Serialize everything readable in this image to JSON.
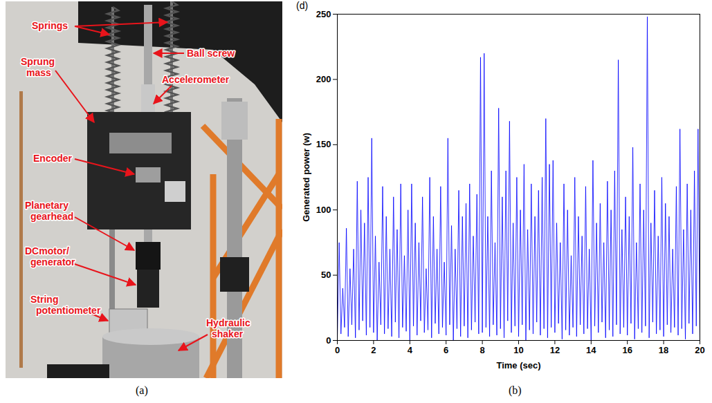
{
  "captions": [
    "(a)",
    "(b)"
  ],
  "panel_a": {
    "labels": [
      {
        "lines": [
          "Springs"
        ]
      },
      {
        "lines": [
          "Ball screw"
        ]
      },
      {
        "lines": [
          "Sprung",
          "mass"
        ]
      },
      {
        "lines": [
          "Accelerometer"
        ]
      },
      {
        "lines": [
          "Encoder"
        ]
      },
      {
        "lines": [
          "Planetary",
          "gearhead"
        ]
      },
      {
        "lines": [
          "DCmotor/",
          "generator"
        ]
      },
      {
        "lines": [
          "String",
          "potentiometer"
        ]
      },
      {
        "lines": [
          "Hydraulic",
          "shaker"
        ]
      }
    ]
  },
  "chart_data": {
    "type": "line",
    "annotations": [
      "(d)"
    ],
    "x_label": "Time (sec)",
    "y_label": "Generated power (w)",
    "color": "#0000ff",
    "xlim": [
      0,
      20
    ],
    "xticks": [
      0,
      2,
      4,
      6,
      8,
      10,
      12,
      14,
      16,
      18,
      20
    ],
    "ylim": [
      0,
      250
    ],
    "yticks": [
      0,
      50,
      100,
      150,
      200,
      250
    ],
    "x": [
      0,
      0.1,
      0.2,
      0.3,
      0.4,
      0.5,
      0.6,
      0.7,
      0.8,
      0.9,
      1,
      1.1,
      1.2,
      1.3,
      1.4,
      1.5,
      1.6,
      1.7,
      1.8,
      1.9,
      2,
      2.1,
      2.2,
      2.3,
      2.4,
      2.5,
      2.6,
      2.7,
      2.8,
      2.9,
      3,
      3.1,
      3.2,
      3.3,
      3.4,
      3.5,
      3.6,
      3.7,
      3.8,
      3.9,
      4,
      4.1,
      4.2,
      4.3,
      4.4,
      4.5,
      4.6,
      4.7,
      4.8,
      4.9,
      5,
      5.1,
      5.2,
      5.3,
      5.4,
      5.5,
      5.6,
      5.7,
      5.8,
      5.9,
      6,
      6.1,
      6.2,
      6.3,
      6.4,
      6.5,
      6.6,
      6.7,
      6.8,
      6.9,
      7,
      7.1,
      7.2,
      7.3,
      7.4,
      7.5,
      7.6,
      7.7,
      7.8,
      7.9,
      8,
      8.1,
      8.2,
      8.3,
      8.4,
      8.5,
      8.6,
      8.7,
      8.8,
      8.9,
      9,
      9.1,
      9.2,
      9.3,
      9.4,
      9.5,
      9.6,
      9.7,
      9.8,
      9.9,
      10,
      10.1,
      10.2,
      10.3,
      10.4,
      10.5,
      10.6,
      10.7,
      10.8,
      10.9,
      11,
      11.1,
      11.2,
      11.3,
      11.4,
      11.5,
      11.6,
      11.7,
      11.8,
      11.9,
      12,
      12.1,
      12.2,
      12.3,
      12.4,
      12.5,
      12.6,
      12.7,
      12.8,
      12.9,
      13,
      13.1,
      13.2,
      13.3,
      13.4,
      13.5,
      13.6,
      13.7,
      13.8,
      13.9,
      14,
      14.1,
      14.2,
      14.3,
      14.4,
      14.5,
      14.6,
      14.7,
      14.8,
      14.9,
      15,
      15.1,
      15.2,
      15.3,
      15.4,
      15.5,
      15.6,
      15.7,
      15.8,
      15.9,
      16,
      16.1,
      16.2,
      16.3,
      16.4,
      16.5,
      16.6,
      16.7,
      16.8,
      16.9,
      17,
      17.1,
      17.2,
      17.3,
      17.4,
      17.5,
      17.6,
      17.7,
      17.8,
      17.9,
      18,
      18.1,
      18.2,
      18.3,
      18.4,
      18.5,
      18.6,
      18.7,
      18.8,
      18.9,
      19,
      19.1,
      19.2,
      19.3,
      19.4,
      19.5,
      19.6,
      19.7,
      19.8,
      19.9,
      20
    ],
    "values": [
      0,
      75,
      5,
      40,
      10,
      86,
      3,
      55,
      12,
      70,
      2,
      122,
      8,
      100,
      15,
      90,
      4,
      125,
      10,
      155,
      6,
      80,
      0,
      60,
      12,
      118,
      5,
      95,
      9,
      70,
      3,
      110,
      14,
      85,
      2,
      120,
      10,
      65,
      7,
      100,
      0,
      120,
      11,
      90,
      4,
      75,
      15,
      110,
      6,
      55,
      8,
      125,
      2,
      95,
      13,
      70,
      5,
      118,
      10,
      60,
      4,
      155,
      12,
      88,
      0,
      70,
      9,
      115,
      3,
      95,
      11,
      105,
      2,
      120,
      8,
      80,
      14,
      112,
      5,
      217,
      6,
      220,
      10,
      95,
      3,
      130,
      12,
      75,
      4,
      178,
      9,
      110,
      2,
      130,
      15,
      168,
      6,
      90,
      11,
      125,
      3,
      100,
      12,
      135,
      0,
      85,
      8,
      120,
      5,
      95,
      14,
      115,
      4,
      125,
      9,
      170,
      2,
      135,
      10,
      138,
      6,
      90,
      13,
      75,
      1,
      120,
      8,
      100,
      4,
      65,
      10,
      125,
      3,
      95,
      12,
      80,
      5,
      118,
      9,
      70,
      0,
      138,
      11,
      90,
      6,
      105,
      14,
      75,
      2,
      122,
      8,
      100,
      3,
      130,
      12,
      215,
      5,
      85,
      10,
      110,
      4,
      95,
      13,
      148,
      1,
      75,
      9,
      120,
      6,
      100,
      11,
      248,
      2,
      90,
      14,
      115,
      5,
      80,
      8,
      125,
      3,
      105,
      12,
      95,
      6,
      70,
      10,
      118,
      4,
      162,
      9,
      85,
      1,
      120,
      13,
      100,
      5,
      130,
      11,
      162,
      0
    ]
  }
}
